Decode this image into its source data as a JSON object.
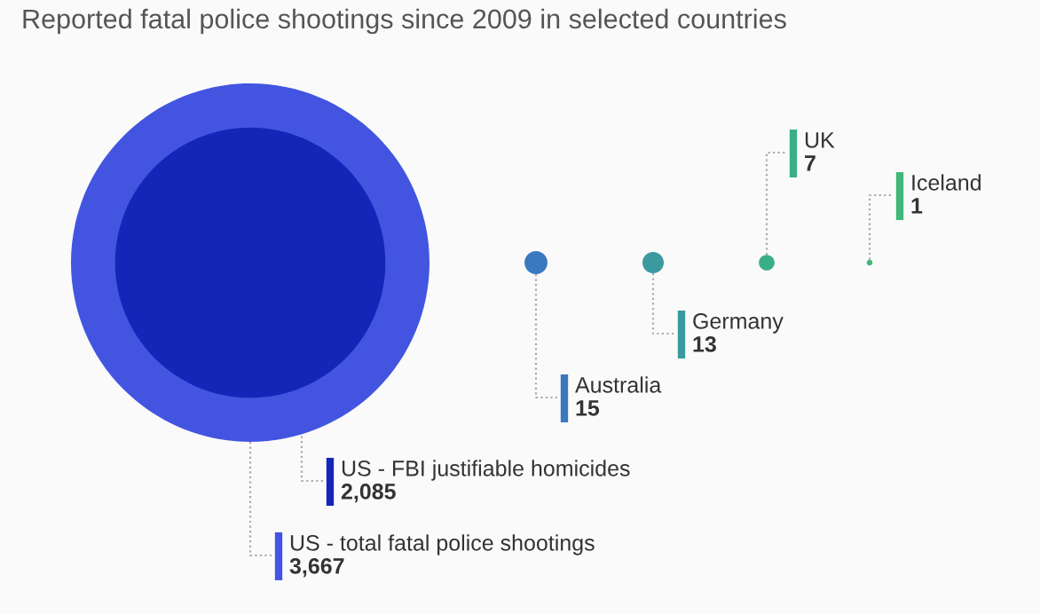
{
  "chart_data": {
    "type": "other",
    "title": "Reported fatal police shootings since 2009 in selected countries",
    "categories": [
      "US - total fatal police shootings",
      "US - FBI justifiable homicides",
      "Australia",
      "Germany",
      "UK",
      "Iceland"
    ],
    "values": [
      3667,
      2085,
      15,
      13,
      7,
      1
    ],
    "value_labels": [
      "3,667",
      "2,085",
      "15",
      "13",
      "7",
      "1"
    ],
    "colors": [
      "#4355e0",
      "#1426b8",
      "#3a78c0",
      "#3a9aa0",
      "#3aaf86",
      "#40b878"
    ]
  }
}
